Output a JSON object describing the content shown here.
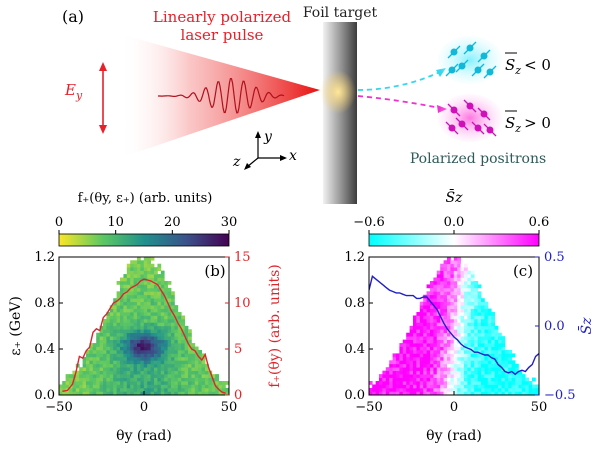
{
  "panel_a": {
    "label": "(a)",
    "laser_title_line1": "Linearly polarized",
    "laser_title_line2": "laser pulse",
    "ey_label": "E",
    "ey_sub": "y",
    "foil_label": "Foil target",
    "sz_neg": "< 0",
    "sz_pos": "> 0",
    "sz_symbol": "S",
    "sz_sub": "z",
    "positron_label": "Polarized positrons",
    "axis_y": "y",
    "axis_z": "z",
    "axis_x": "x",
    "colors": {
      "laser": "#e8202a",
      "cyan": "#33e0ff",
      "magenta": "#ff2ed0"
    }
  },
  "chart_data": [
    {
      "type": "heatmap",
      "panel_label": "(b)",
      "colorbar": {
        "label": "f₊(θy, ε₊) (arb. units)",
        "ticks": [
          "0",
          "10",
          "20",
          "30"
        ],
        "range": [
          0,
          30
        ],
        "colormap": "viridis_r"
      },
      "xlabel": "θy (rad)",
      "ylabel": "ε₊ (GeV)",
      "ylabel_right": "f₊(θy) (arb. units)",
      "xlim": [
        -50,
        50
      ],
      "ylim": [
        0,
        1.2
      ],
      "ylim_right": [
        0,
        15
      ],
      "xticks": [
        "−50",
        "0",
        "50"
      ],
      "yticks": [
        "0.0",
        "0.4",
        "0.8",
        "1.2"
      ],
      "yticks_right": [
        "0",
        "5",
        "10",
        "15"
      ],
      "line": {
        "color": "#e0242a",
        "x": [
          -48,
          -45,
          -42,
          -40,
          -38,
          -36,
          -34,
          -32,
          -30,
          -28,
          -26,
          -24,
          -22,
          -20,
          -18,
          -16,
          -14,
          -12,
          -10,
          -8,
          -6,
          -4,
          -2,
          0,
          2,
          4,
          6,
          8,
          10,
          12,
          14,
          16,
          18,
          20,
          22,
          24,
          26,
          28,
          30,
          32,
          34,
          36,
          38,
          40,
          42,
          44,
          46,
          48
        ],
        "y": [
          0.4,
          0.5,
          1.2,
          2.5,
          4.2,
          4.0,
          4.8,
          5.2,
          6.8,
          7.2,
          7.0,
          8.4,
          8.8,
          9.4,
          10.0,
          10.2,
          10.5,
          11.0,
          11.2,
          11.6,
          11.8,
          12.0,
          12.4,
          12.6,
          12.5,
          12.4,
          12.2,
          12.0,
          11.4,
          10.8,
          10.0,
          9.2,
          8.6,
          7.8,
          7.2,
          6.4,
          5.6,
          5.0,
          4.8,
          4.2,
          3.8,
          4.4,
          3.0,
          2.0,
          1.0,
          0.6,
          0.3,
          0.2
        ]
      }
    },
    {
      "type": "heatmap",
      "panel_label": "(c)",
      "colorbar": {
        "label": "S̄z",
        "ticks": [
          "−0.6",
          "0.0",
          "0.6"
        ],
        "range": [
          -0.6,
          0.6
        ],
        "colormap": "cyan-white-magenta"
      },
      "xlabel": "θy (rad)",
      "ylabel_right": "S̄z",
      "xlim": [
        -50,
        50
      ],
      "ylim": [
        0,
        1.2
      ],
      "ylim_right": [
        -0.5,
        0.5
      ],
      "xticks": [
        "−50",
        "0",
        "50"
      ],
      "yticks": [
        "0.0",
        "0.4",
        "0.8",
        "1.2"
      ],
      "yticks_right": [
        "−0.5",
        "0.0",
        "0.5"
      ],
      "line": {
        "color": "#2020c8",
        "x": [
          -50,
          -48,
          -46,
          -44,
          -42,
          -40,
          -38,
          -36,
          -34,
          -32,
          -30,
          -28,
          -26,
          -24,
          -22,
          -20,
          -18,
          -16,
          -14,
          -12,
          -10,
          -8,
          -6,
          -4,
          -2,
          0,
          2,
          4,
          6,
          8,
          10,
          12,
          14,
          16,
          18,
          20,
          22,
          24,
          26,
          28,
          30,
          32,
          34,
          36,
          38,
          40,
          42,
          44,
          46,
          48,
          50
        ],
        "y": [
          0.26,
          0.36,
          0.34,
          0.32,
          0.3,
          0.28,
          0.26,
          0.25,
          0.24,
          0.24,
          0.23,
          0.22,
          0.22,
          0.22,
          0.2,
          0.2,
          0.21,
          0.21,
          0.18,
          0.15,
          0.12,
          0.07,
          0.02,
          -0.02,
          -0.05,
          -0.08,
          -0.1,
          -0.13,
          -0.15,
          -0.16,
          -0.17,
          -0.19,
          -0.19,
          -0.2,
          -0.21,
          -0.21,
          -0.23,
          -0.24,
          -0.28,
          -0.3,
          -0.33,
          -0.34,
          -0.33,
          -0.35,
          -0.33,
          -0.32,
          -0.33,
          -0.3,
          -0.28,
          -0.22,
          -0.2
        ]
      }
    }
  ]
}
